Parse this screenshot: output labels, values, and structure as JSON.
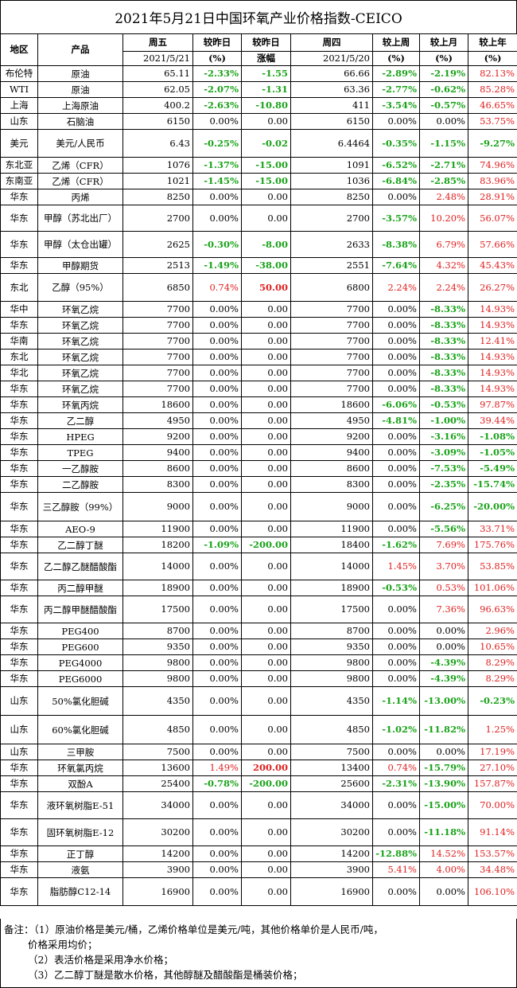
{
  "title": "2021年5月21日中国环氧产业价格指数-CEICO",
  "header": {
    "region": "地区",
    "product": "产品",
    "fri": "周五",
    "fri_date": "2021/5/21",
    "vs_prev_day": "较昨日",
    "vs_prev_day_unit": "(%)",
    "vs_prev_day2": "较昨日",
    "vs_prev_day2_unit": "涨幅",
    "thu": "周四",
    "thu_date": "2021/5/20",
    "vs_week": "较上周",
    "vs_week_unit": "(%)",
    "vs_month": "较上月",
    "vs_month_unit": "(%)",
    "vs_year": "较上年",
    "vs_year_unit": "(%)"
  },
  "rows": [
    [
      "布伦特",
      "原油",
      "65.11",
      "-2.33%",
      "-1.55",
      "66.66",
      "-2.89%",
      "-2.19%",
      "82.13%"
    ],
    [
      "WTI",
      "原油",
      "62.05",
      "-2.07%",
      "-1.31",
      "63.36",
      "-2.77%",
      "-0.62%",
      "85.28%"
    ],
    [
      "上海",
      "上海原油",
      "400.2",
      "-2.63%",
      "-10.80",
      "411",
      "-3.54%",
      "-0.57%",
      "46.65%"
    ],
    [
      "山东",
      "石脑油",
      "6150",
      "0.00%",
      "0.00",
      "6150",
      "0.00%",
      "0.00%",
      "53.75%"
    ],
    [
      "美元",
      "美元/人民币",
      "6.43",
      "-0.25%",
      "-0.02",
      "6.4464",
      "-0.35%",
      "-1.15%",
      "-9.27%"
    ],
    [
      "东北亚",
      "乙烯（CFR）",
      "1076",
      "-1.37%",
      "-15.00",
      "1091",
      "-6.52%",
      "-2.71%",
      "74.96%"
    ],
    [
      "东南亚",
      "乙烯（CFR）",
      "1021",
      "-1.45%",
      "-15.00",
      "1036",
      "-6.84%",
      "-2.85%",
      "83.96%"
    ],
    [
      "华东",
      "丙烯",
      "8250",
      "0.00%",
      "0.00",
      "8250",
      "0.00%",
      "2.48%",
      "28.91%"
    ],
    [
      "华东",
      "甲醇（苏北出厂）",
      "2700",
      "0.00%",
      "0.00",
      "2700",
      "-3.57%",
      "10.20%",
      "56.07%"
    ],
    [
      "华东",
      "甲醇（太仓出罐）",
      "2625",
      "-0.30%",
      "-8.00",
      "2633",
      "-8.38%",
      "6.79%",
      "57.66%"
    ],
    [
      "华东",
      "甲醇期货",
      "2513",
      "-1.49%",
      "-38.00",
      "2551",
      "-7.64%",
      "4.32%",
      "45.43%"
    ],
    [
      "东北",
      "乙醇（95%）",
      "6850",
      "0.74%",
      "50.00",
      "6800",
      "2.24%",
      "2.24%",
      "26.27%"
    ],
    [
      "华中",
      "环氧乙烷",
      "7700",
      "0.00%",
      "0.00",
      "7700",
      "0.00%",
      "-8.33%",
      "14.93%"
    ],
    [
      "华东",
      "环氧乙烷",
      "7700",
      "0.00%",
      "0.00",
      "7700",
      "0.00%",
      "-8.33%",
      "14.93%"
    ],
    [
      "华南",
      "环氧乙烷",
      "7700",
      "0.00%",
      "0.00",
      "7700",
      "0.00%",
      "-8.33%",
      "12.41%"
    ],
    [
      "东北",
      "环氧乙烷",
      "7700",
      "0.00%",
      "0.00",
      "7700",
      "0.00%",
      "-8.33%",
      "14.93%"
    ],
    [
      "华北",
      "环氧乙烷",
      "7700",
      "0.00%",
      "0.00",
      "7700",
      "0.00%",
      "-8.33%",
      "14.93%"
    ],
    [
      "华东",
      "环氧乙烷",
      "7700",
      "0.00%",
      "0.00",
      "7700",
      "0.00%",
      "-8.33%",
      "14.93%"
    ],
    [
      "华东",
      "环氧丙烷",
      "18600",
      "0.00%",
      "0.00",
      "18600",
      "-6.06%",
      "-0.53%",
      "97.87%"
    ],
    [
      "华东",
      "乙二醇",
      "4950",
      "0.00%",
      "0.00",
      "4950",
      "-4.81%",
      "-1.00%",
      "39.44%"
    ],
    [
      "华东",
      "HPEG",
      "9200",
      "0.00%",
      "0.00",
      "9200",
      "0.00%",
      "-3.16%",
      "-1.08%"
    ],
    [
      "华东",
      "TPEG",
      "9400",
      "0.00%",
      "0.00",
      "9400",
      "0.00%",
      "-3.09%",
      "-1.05%"
    ],
    [
      "华东",
      "一乙醇胺",
      "8600",
      "0.00%",
      "0.00",
      "8600",
      "0.00%",
      "-7.53%",
      "-5.49%"
    ],
    [
      "华东",
      "二乙醇胺",
      "8300",
      "0.00%",
      "0.00",
      "8300",
      "0.00%",
      "-2.35%",
      "-15.74%"
    ],
    [
      "华东",
      "三乙醇胺（99%）",
      "9000",
      "0.00%",
      "0.00",
      "9000",
      "0.00%",
      "-6.25%",
      "-20.00%"
    ],
    [
      "华东",
      "AEO-9",
      "11900",
      "0.00%",
      "0.00",
      "11900",
      "0.00%",
      "-5.56%",
      "33.71%"
    ],
    [
      "华东",
      "乙二醇丁醚",
      "18200",
      "-1.09%",
      "-200.00",
      "18400",
      "-1.62%",
      "7.69%",
      "175.76%"
    ],
    [
      "华东",
      "乙二醇乙醚醋酸酯",
      "14000",
      "0.00%",
      "0.00",
      "14000",
      "1.45%",
      "3.70%",
      "53.85%"
    ],
    [
      "华东",
      "丙二醇甲醚",
      "18900",
      "0.00%",
      "0.00",
      "18900",
      "-0.53%",
      "0.53%",
      "101.06%"
    ],
    [
      "华东",
      "丙二醇甲醚醋酸酯",
      "17500",
      "0.00%",
      "0.00",
      "17500",
      "0.00%",
      "7.36%",
      "96.63%"
    ],
    [
      "华东",
      "PEG400",
      "8700",
      "0.00%",
      "0.00",
      "8700",
      "0.00%",
      "0.00%",
      "2.96%"
    ],
    [
      "华东",
      "PEG600",
      "9350",
      "0.00%",
      "0.00",
      "9350",
      "0.00%",
      "0.00%",
      "10.65%"
    ],
    [
      "华东",
      "PEG4000",
      "9800",
      "0.00%",
      "0.00",
      "9800",
      "0.00%",
      "-4.39%",
      "8.29%"
    ],
    [
      "华东",
      "PEG6000",
      "9800",
      "0.00%",
      "0.00",
      "9800",
      "0.00%",
      "-4.39%",
      "8.29%"
    ],
    [
      "山东",
      "50%氯化胆碱",
      "4350",
      "0.00%",
      "0.00",
      "4350",
      "-1.14%",
      "-13.00%",
      "-0.23%"
    ],
    [
      "山东",
      "60%氯化胆碱",
      "4850",
      "0.00%",
      "0.00",
      "4850",
      "-1.02%",
      "-11.82%",
      "1.25%"
    ],
    [
      "山东",
      "三甲胺",
      "7500",
      "0.00%",
      "0.00",
      "7500",
      "0.00%",
      "0.00%",
      "17.19%"
    ],
    [
      "华东",
      "环氧氯丙烷",
      "13600",
      "1.49%",
      "200.00",
      "13400",
      "0.74%",
      "-15.79%",
      "27.10%"
    ],
    [
      "华东",
      "双酚A",
      "25400",
      "-0.78%",
      "-200.00",
      "25600",
      "-2.31%",
      "-13.90%",
      "157.87%"
    ],
    [
      "华东",
      "液环氧树脂E-51",
      "34000",
      "0.00%",
      "0.00",
      "34000",
      "0.00%",
      "-15.00%",
      "70.00%"
    ],
    [
      "华东",
      "固环氧树脂E-12",
      "30200",
      "0.00%",
      "0.00",
      "30200",
      "0.00%",
      "-11.18%",
      "91.14%"
    ],
    [
      "华东",
      "正丁醇",
      "14200",
      "0.00%",
      "0.00",
      "14200",
      "-12.88%",
      "14.52%",
      "153.57%"
    ],
    [
      "华东",
      "液氨",
      "3900",
      "0.00%",
      "0.00",
      "3900",
      "5.41%",
      "4.00%",
      "34.48%"
    ],
    [
      "华东",
      "脂肪醇C12-14",
      "16900",
      "0.00%",
      "0.00",
      "16900",
      "0.00%",
      "0.00%",
      "106.10%"
    ]
  ],
  "notes": [
    "备注：（1）原油价格是美元/桶，乙烯价格单位是美元/吨，其他价格单价是人民币/吨，",
    "价格采用均价；",
    "（2）表活价格是采用净水价格；",
    "（3）乙二醇丁醚是散水价格，其他醇醚及醋酸酯是桶装价格；"
  ],
  "colors": {
    "negative": "#1aa31a",
    "positive": "#e02020"
  }
}
